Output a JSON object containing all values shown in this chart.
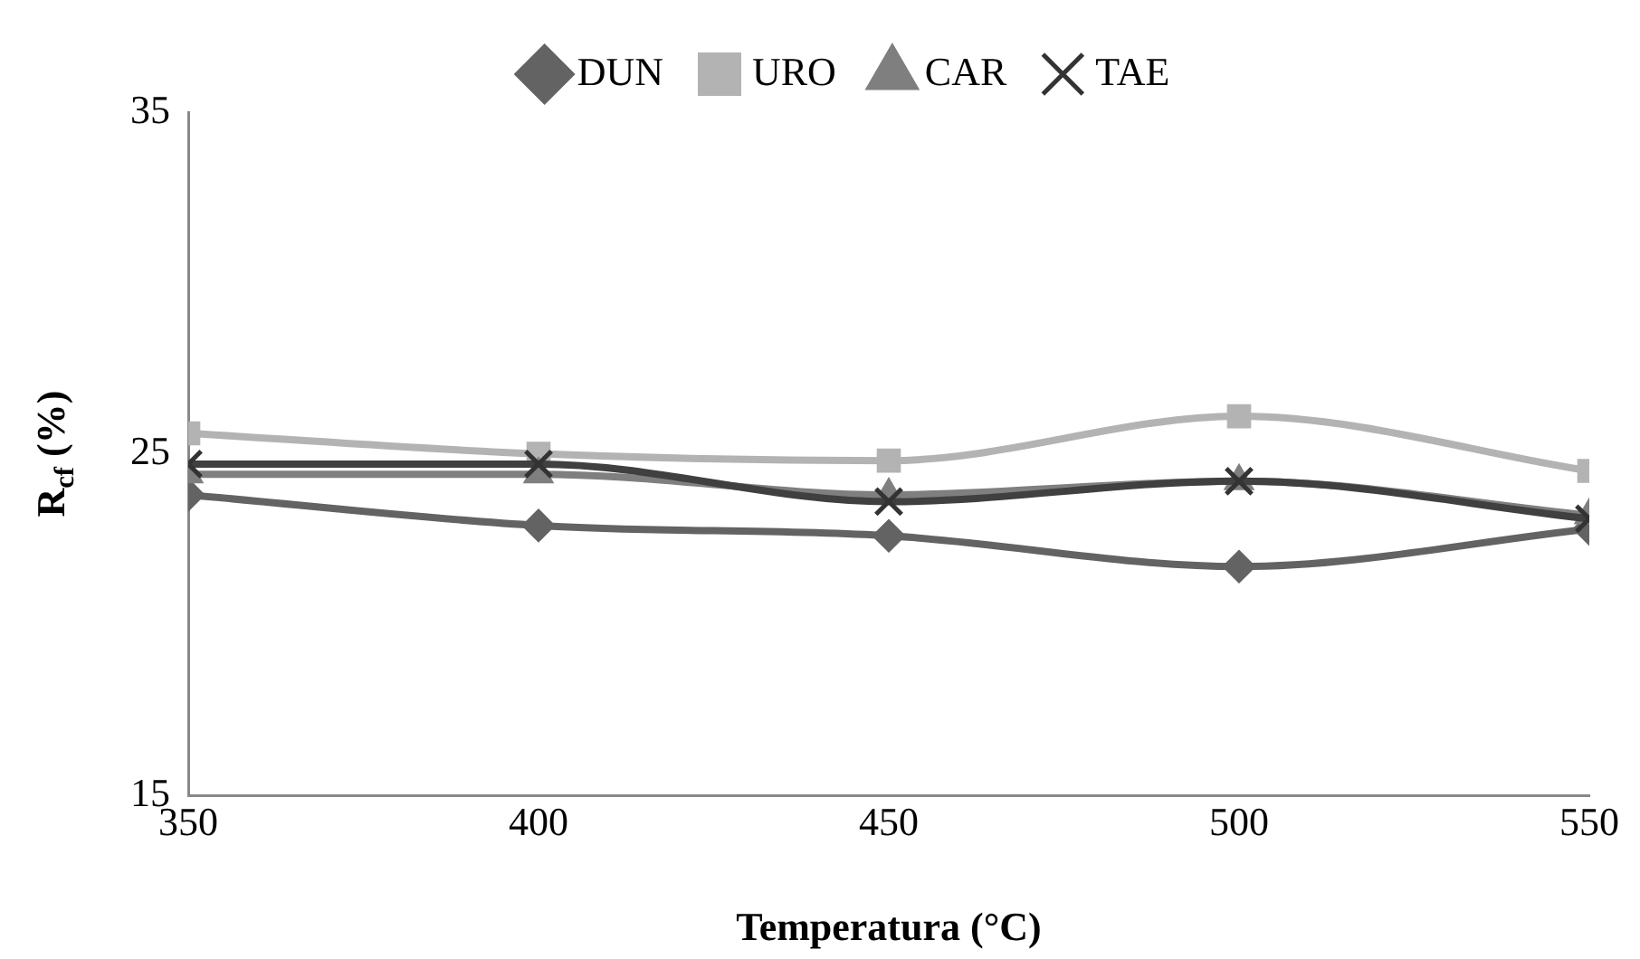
{
  "chart_data": {
    "type": "line",
    "xlabel": "Temperatura (°C)",
    "ylabel": "R$_{cf}$ (%)",
    "x": [
      350,
      400,
      450,
      500,
      550
    ],
    "xlim": [
      350,
      550
    ],
    "xticks": [
      350,
      400,
      450,
      500,
      550
    ],
    "ylim": [
      15,
      35
    ],
    "yticks": [
      15,
      25,
      35
    ],
    "grid": false,
    "legend": "top",
    "line_style": "solid",
    "series": [
      {
        "name": "DUN",
        "color": "#636363",
        "marker": "diamond",
        "values": [
          23.8,
          22.9,
          22.6,
          21.7,
          22.8
        ]
      },
      {
        "name": "URO",
        "color": "#b3b3b3",
        "marker": "square",
        "values": [
          25.6,
          25.0,
          24.8,
          26.1,
          24.5
        ]
      },
      {
        "name": "CAR",
        "color": "#7f7f7f",
        "marker": "triangle",
        "values": [
          24.4,
          24.4,
          23.8,
          24.2,
          23.2
        ]
      },
      {
        "name": "TAE",
        "color": "#404040",
        "marker": "cross",
        "values": [
          24.7,
          24.7,
          23.6,
          24.2,
          23.1
        ]
      }
    ]
  }
}
